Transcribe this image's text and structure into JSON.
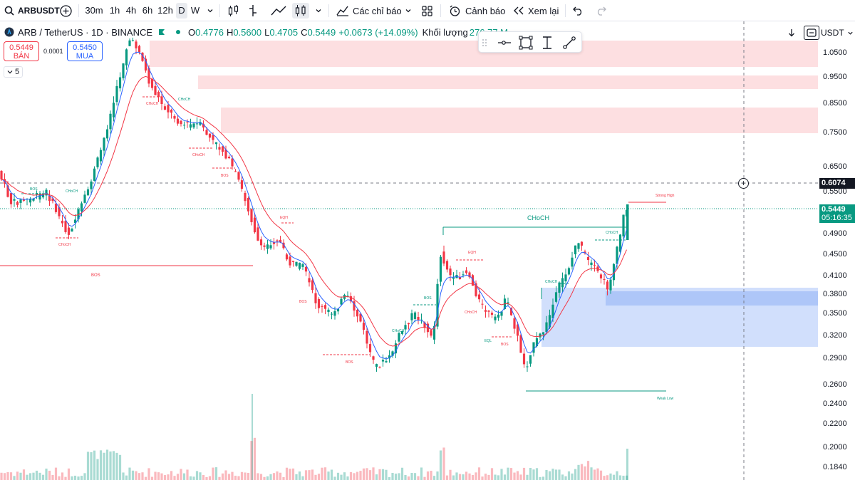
{
  "toolbar": {
    "symbol": "ARBUSDT",
    "timeframes": [
      "30m",
      "1h",
      "4h",
      "6h",
      "12h",
      "D",
      "W"
    ],
    "active_timeframe": "D",
    "indicators_label": "Các chỉ báo",
    "alert_label": "Cảnh báo",
    "replay_label": "Xem lại"
  },
  "legend": {
    "title": "ARB / TetherUS · 1D · BINANCE",
    "open_key": "O",
    "open": "0.4776",
    "high_key": "H",
    "high": "0.5600",
    "low_key": "L",
    "low": "0.4705",
    "close_key": "C",
    "close": "0.5449",
    "change": "+0.0673 (+14.09%)",
    "volume_label": "Khối lượng",
    "volume": "276.77 M"
  },
  "trade": {
    "sell_price": "0.5449",
    "sell_label": "BÁN",
    "buy_price": "0.5450",
    "buy_label": "MUA",
    "spread": "0.0001",
    "indicator_count": "5"
  },
  "axis": {
    "currency": "USDT",
    "ticks": [
      "1.0500",
      "0.9500",
      "0.8500",
      "0.7500",
      "0.6500",
      "0.5500",
      "0.4900",
      "0.4500",
      "0.4100",
      "0.3800",
      "0.3500",
      "0.3200",
      "0.2900",
      "0.2600",
      "0.2400",
      "0.2200",
      "0.2000",
      "0.1840"
    ],
    "crosshair_price": "0.6074",
    "last_price": "0.5449",
    "countdown": "05:16:35"
  },
  "annotations": {
    "choch_main": "CHoCH",
    "strong_high": "Strong High",
    "weak_low": "Weak Low",
    "bos": "BOS",
    "choch": "CHoCH",
    "eqh": "EQH",
    "eql": "EQL"
  },
  "colors": {
    "bull": "#089981",
    "bear": "#f23645",
    "ema_fast": "#2962ff",
    "ema_slow": "#f23645",
    "supply_zone": "#fddfe1",
    "demand_zone": "#d1dffc",
    "demand_zone_dark": "#aec6f8"
  }
}
